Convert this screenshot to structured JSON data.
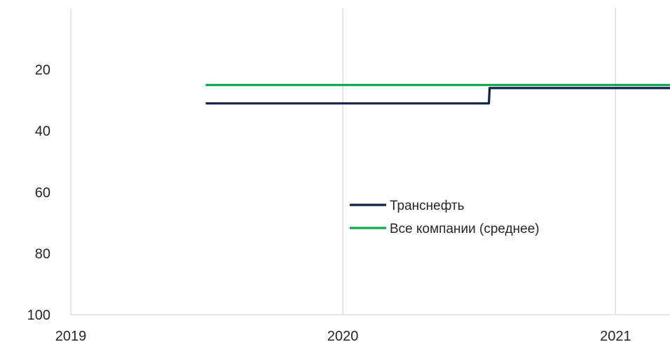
{
  "chart_data": {
    "type": "line",
    "y_inverted": true,
    "ylim": [
      0,
      100
    ],
    "yticks": [
      20,
      40,
      60,
      80,
      100
    ],
    "xlim": [
      "2019-01-01",
      "2021-03-15"
    ],
    "xticks": [
      "2019",
      "2020",
      "2021"
    ],
    "grid": "vertical",
    "legend_position": "center-right",
    "series": [
      {
        "name": "Транснефть",
        "color": "#0d2145",
        "points": [
          {
            "x": "2019-07-01",
            "y": 31
          },
          {
            "x": "2020-07-15",
            "y": 31
          },
          {
            "x": "2020-07-16",
            "y": 26
          },
          {
            "x": "2021-03-15",
            "y": 26
          }
        ]
      },
      {
        "name": "Все компании (среднее)",
        "color": "#12a84f",
        "points": [
          {
            "x": "2019-07-01",
            "y": 25
          },
          {
            "x": "2021-03-15",
            "y": 25
          }
        ]
      }
    ]
  }
}
